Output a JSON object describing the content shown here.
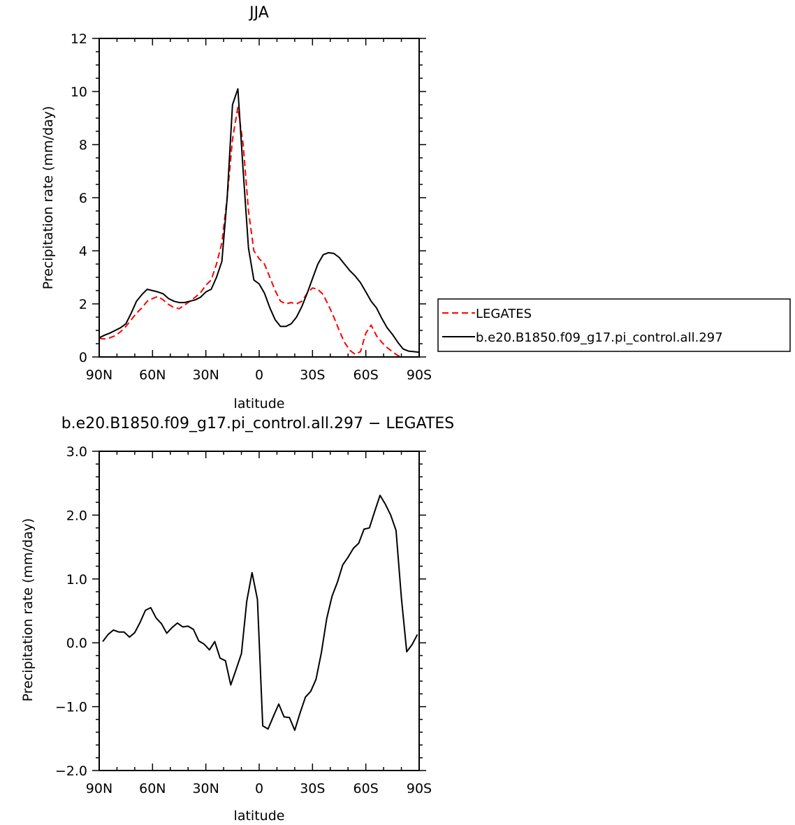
{
  "chart_data": [
    {
      "type": "line",
      "title": "JJA",
      "xlabel": "latitude",
      "ylabel": "Precipitation rate (mm/day)",
      "xlim": [
        90,
        -90
      ],
      "ylim": [
        0,
        12
      ],
      "xticks": [
        90,
        60,
        30,
        0,
        -30,
        -60,
        -90
      ],
      "xtick_labels": [
        "90N",
        "60N",
        "30N",
        "0",
        "30S",
        "60S",
        "90S"
      ],
      "yticks": [
        0,
        2,
        4,
        6,
        8,
        10,
        12
      ],
      "ytick_labels": [
        "0",
        "2",
        "4",
        "6",
        "8",
        "10",
        "12"
      ],
      "legend_position": "right",
      "series": [
        {
          "name": "LEGATES",
          "color": "#ff0000",
          "dash": "dashed",
          "x": [
            90,
            87,
            84,
            81,
            78,
            75,
            72,
            69,
            66,
            63,
            60,
            57,
            54,
            51,
            48,
            45,
            42,
            39,
            36,
            33,
            30,
            27,
            24,
            21,
            18,
            15,
            12,
            9,
            6,
            3,
            0,
            -3,
            -6,
            -9,
            -12,
            -15,
            -18,
            -21,
            -24,
            -27,
            -30,
            -33,
            -36,
            -39,
            -42,
            -45,
            -48,
            -51,
            -54,
            -57,
            -60,
            -63,
            -66,
            -69,
            -72,
            -75,
            -78,
            -81,
            -84,
            -87,
            -90
          ],
          "y": [
            0.7,
            0.68,
            0.72,
            0.8,
            0.95,
            1.15,
            1.4,
            1.65,
            1.85,
            2.1,
            2.2,
            2.28,
            2.15,
            1.98,
            1.86,
            1.82,
            1.95,
            2.1,
            2.25,
            2.42,
            2.7,
            2.9,
            3.5,
            4.3,
            6.0,
            8.2,
            9.4,
            8.0,
            5.5,
            4.0,
            3.7,
            3.5,
            3.0,
            2.5,
            2.1,
            2.0,
            2.05,
            2.0,
            2.1,
            2.4,
            2.6,
            2.55,
            2.35,
            1.95,
            1.5,
            1.0,
            0.55,
            0.25,
            0.1,
            0.2,
            0.9,
            1.2,
            0.8,
            0.55,
            0.35,
            0.2,
            0.05,
            0.0,
            0.0,
            0.0,
            0.0
          ]
        },
        {
          "name": "b.e20.B1850.f09_g17.pi_control.all.297",
          "color": "#000000",
          "dash": "solid",
          "x": [
            90,
            87,
            84,
            81,
            78,
            75,
            72,
            69,
            66,
            63,
            60,
            57,
            54,
            51,
            48,
            45,
            42,
            39,
            36,
            33,
            30,
            27,
            24,
            21,
            18,
            15,
            12,
            9,
            6,
            3,
            0,
            -3,
            -6,
            -9,
            -12,
            -15,
            -18,
            -21,
            -24,
            -27,
            -30,
            -33,
            -36,
            -39,
            -42,
            -45,
            -48,
            -51,
            -54,
            -57,
            -60,
            -63,
            -66,
            -69,
            -72,
            -75,
            -78,
            -81,
            -84,
            -87,
            -90
          ],
          "y": [
            0.72,
            0.82,
            0.9,
            1.0,
            1.1,
            1.25,
            1.65,
            2.1,
            2.35,
            2.55,
            2.5,
            2.45,
            2.38,
            2.2,
            2.1,
            2.05,
            2.05,
            2.1,
            2.15,
            2.25,
            2.45,
            2.55,
            3.0,
            3.6,
            6.0,
            9.5,
            10.1,
            7.0,
            4.1,
            2.9,
            2.75,
            2.4,
            1.85,
            1.4,
            1.15,
            1.15,
            1.25,
            1.5,
            1.9,
            2.4,
            2.95,
            3.5,
            3.85,
            3.93,
            3.9,
            3.75,
            3.5,
            3.25,
            3.05,
            2.8,
            2.45,
            2.1,
            1.85,
            1.45,
            1.1,
            0.85,
            0.55,
            0.3,
            0.22,
            0.2,
            0.18
          ]
        }
      ]
    },
    {
      "type": "line",
      "title": "b.e20.B1850.f09_g17.pi_control.all.297 − LEGATES",
      "xlabel": "latitude",
      "ylabel": "Precipitation rate (mm/day)",
      "xlim": [
        90,
        -90
      ],
      "ylim": [
        -2.0,
        3.0
      ],
      "xticks": [
        90,
        60,
        30,
        0,
        -30,
        -60,
        -90
      ],
      "xtick_labels": [
        "90N",
        "60N",
        "30N",
        "0",
        "30S",
        "60S",
        "90S"
      ],
      "yticks": [
        -2.0,
        -1.0,
        0.0,
        1.0,
        2.0,
        3.0
      ],
      "ytick_labels": [
        "−2.0",
        "−1.0",
        "0.0",
        "1.0",
        "2.0",
        "3.0"
      ],
      "series": [
        {
          "color": "#000000",
          "dash": "solid",
          "x": [
            88,
            85,
            82,
            79,
            76,
            73,
            70,
            67,
            64,
            61,
            58,
            55,
            52,
            49,
            46,
            43,
            40,
            37,
            34,
            31,
            28,
            25,
            22,
            19,
            16,
            13,
            10,
            7,
            4,
            1,
            -2,
            -5,
            -8,
            -11,
            -14,
            -17,
            -20,
            -23,
            -26,
            -29,
            -32,
            -35,
            -38,
            -41,
            -44,
            -47,
            -50,
            -53,
            -56,
            -59,
            -62,
            -65,
            -68,
            -71,
            -74,
            -77,
            -80,
            -83,
            -86,
            -89
          ],
          "y": [
            0.02,
            0.13,
            0.2,
            0.17,
            0.17,
            0.09,
            0.16,
            0.32,
            0.51,
            0.55,
            0.39,
            0.3,
            0.15,
            0.24,
            0.31,
            0.25,
            0.26,
            0.21,
            0.03,
            -0.02,
            -0.11,
            0.02,
            -0.24,
            -0.28,
            -0.66,
            -0.42,
            -0.17,
            0.65,
            1.1,
            0.68,
            -1.3,
            -1.35,
            -1.15,
            -0.96,
            -1.16,
            -1.17,
            -1.37,
            -1.1,
            -0.85,
            -0.76,
            -0.57,
            -0.15,
            0.38,
            0.73,
            0.95,
            1.22,
            1.34,
            1.48,
            1.56,
            1.78,
            1.8,
            2.06,
            2.31,
            2.17,
            2.0,
            1.76,
            0.7,
            -0.14,
            -0.03,
            0.13
          ]
        }
      ]
    }
  ]
}
